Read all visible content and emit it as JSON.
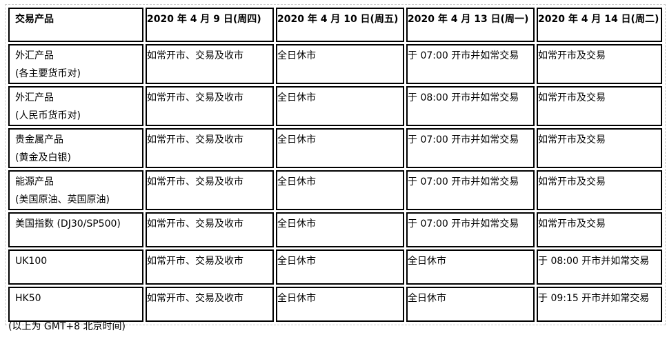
{
  "table": {
    "headers": [
      "交易产品",
      "2020 年 4 月 9 日(周四)",
      "2020 年 4 月 10 日(周五)",
      "2020 年 4 月 13 日(周一)",
      "2020 年 4 月 14 日(周二)"
    ],
    "rows": [
      {
        "product": "外汇产品",
        "sub": "(各主要货币对)",
        "cells": [
          "如常开市、交易及收市",
          "全日休市",
          "于 07:00 开市并如常交易",
          "如常开市及交易"
        ]
      },
      {
        "product": "外汇产品",
        "sub": "(人民币货币对)",
        "cells": [
          "如常开市、交易及收市",
          "全日休市",
          "于 08:00 开市并如常交易",
          "如常开市及交易"
        ]
      },
      {
        "product": "贵金属产品",
        "sub": "(黄金及白银)",
        "cells": [
          "如常开市、交易及收市",
          "全日休市",
          "于 07:00 开市并如常交易",
          "如常开市及交易"
        ]
      },
      {
        "product": "能源产品",
        "sub": "(美国原油、英国原油)",
        "cells": [
          "如常开市、交易及收市",
          "全日休市",
          "于 07:00 开市并如常交易",
          "如常开市及交易"
        ]
      },
      {
        "product": "美国指数 (DJ30/SP500)",
        "sub": "",
        "cells": [
          "如常开市、交易及收市",
          "全日休市",
          "于 07:00 开市并如常交易",
          "如常开市及交易"
        ]
      },
      {
        "product": "UK100",
        "sub": "",
        "cells": [
          "如常开市、交易及收市",
          "全日休市",
          "全日休市",
          "于 08:00 开市并如常交易"
        ]
      },
      {
        "product": "HK50",
        "sub": "",
        "cells": [
          "如常开市、交易及收市",
          "全日休市",
          "全日休市",
          "于 09:15 开市并如常交易"
        ]
      }
    ]
  },
  "footnote": "(以上为 GMT+8 北京时间)"
}
